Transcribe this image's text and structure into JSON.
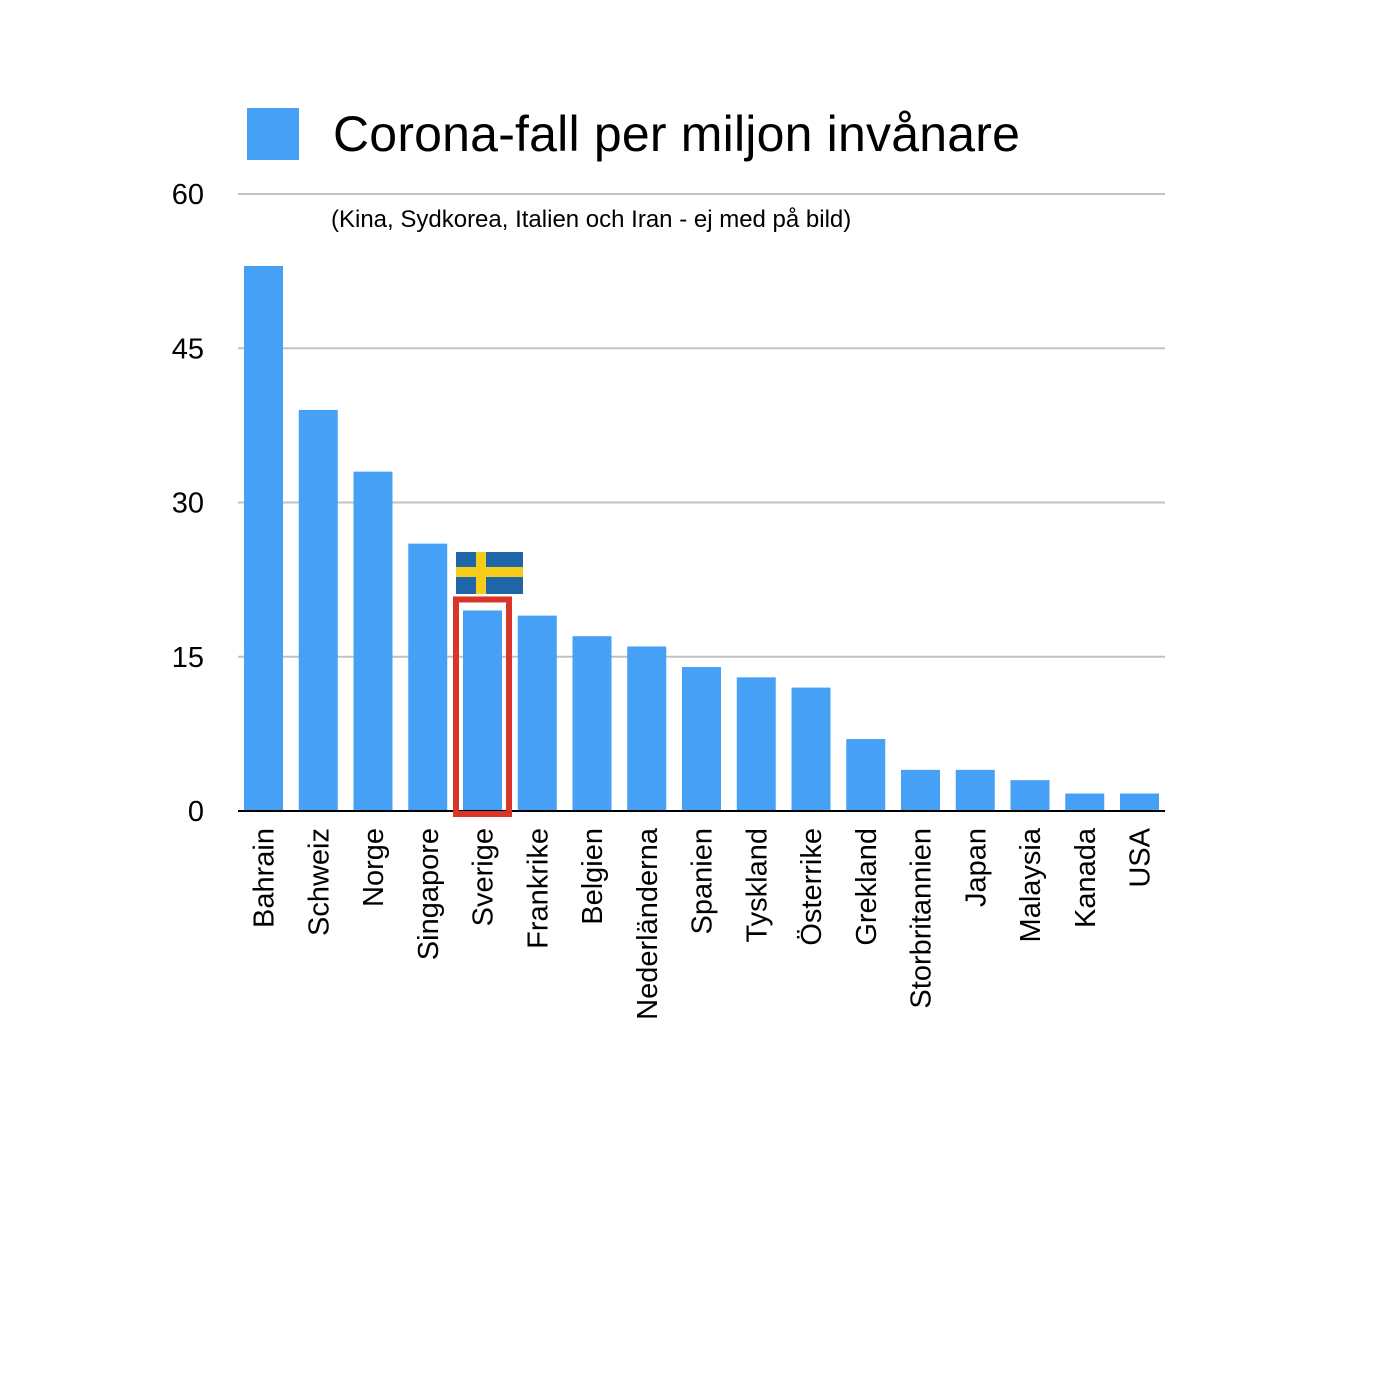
{
  "colors": {
    "bar": "#46a0f6",
    "grid": "#c2c2c2",
    "axis": "#000000",
    "highlight": "#d9362a",
    "flag_blue": "#1f66a8",
    "flag_yellow": "#f7cd1b"
  },
  "legend": {
    "label": "Corona-fall per miljon invånare"
  },
  "subtitle": "(Kina, Sydkorea, Italien och Iran - ej med på bild)",
  "chart_data": {
    "type": "bar",
    "title": "",
    "xlabel": "",
    "ylabel": "",
    "ylim": [
      0,
      60
    ],
    "yticks": [
      0,
      15,
      30,
      45,
      60
    ],
    "grid": true,
    "legend_position": "top",
    "categories": [
      "Bahrain",
      "Schweiz",
      "Norge",
      "Singapore",
      "Sverige",
      "Frankrike",
      "Belgien",
      "Nederländerna",
      "Spanien",
      "Tyskland",
      "Österrike",
      "Grekland",
      "Storbritannien",
      "Japan",
      "Malaysia",
      "Kanada",
      "USA"
    ],
    "series": [
      {
        "name": "Corona-fall per miljon invånare",
        "values": [
          53,
          39,
          33,
          26,
          19.5,
          19,
          17,
          16,
          14,
          13,
          12,
          7,
          4,
          4,
          3,
          1.7,
          1.7
        ]
      }
    ],
    "highlight": {
      "category": "Sverige",
      "marker": "sweden-flag-icon"
    }
  }
}
